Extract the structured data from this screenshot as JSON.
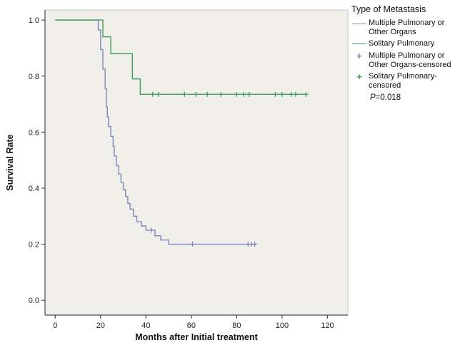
{
  "legend": {
    "title": "Type of Metastasis",
    "entries": [
      {
        "label": "Multiple Pulmonary or Other Organs",
        "color": "#7f87bf",
        "marker": "line"
      },
      {
        "label": "Solitary Pulmonary",
        "color": "#3fa05c",
        "marker": "line"
      },
      {
        "label": "Multiple Pulmonary or Other Organs-censored",
        "color": "#7f87bf",
        "marker": "plus"
      },
      {
        "label": "Solitary Pulmonary-censored",
        "color": "#3fa05c",
        "marker": "plus"
      }
    ],
    "p_italic": "P",
    "p_rest": "=0.018"
  },
  "chart_data": {
    "type": "line",
    "subtype": "kaplan-meier-step",
    "title": "Type of Metastasis",
    "xlabel": "Months after Initial treatment",
    "ylabel": "Survival Rate",
    "xlim": [
      -4.5,
      129
    ],
    "ylim": [
      -0.053,
      1.036
    ],
    "plot_bg": "#f0efe9",
    "plot_border": "#c9c8c2",
    "axis_color": "#4a4a4a",
    "tick_label_color": "#222222",
    "xticks": [
      {
        "value": 0,
        "label": "0"
      },
      {
        "value": 20,
        "label": "20"
      },
      {
        "value": 40,
        "label": "40"
      },
      {
        "value": 60,
        "label": "60"
      },
      {
        "value": 80,
        "label": "80"
      },
      {
        "value": 100,
        "label": "100"
      },
      {
        "value": 120,
        "label": "120"
      }
    ],
    "yticks": [
      {
        "value": 0.0,
        "label": "0.0"
      },
      {
        "value": 0.2,
        "label": "0.2"
      },
      {
        "value": 0.4,
        "label": "0.4"
      },
      {
        "value": 0.6,
        "label": "0.6"
      },
      {
        "value": 0.8,
        "label": "0.8"
      },
      {
        "value": 1.0,
        "label": "1.0"
      }
    ],
    "series": [
      {
        "name": "Multiple Pulmonary or Other Organs",
        "color": "#7f87bf",
        "points": [
          [
            0,
            1.0
          ],
          [
            19,
            1.0
          ],
          [
            19,
            0.965
          ],
          [
            20,
            0.965
          ],
          [
            20,
            0.895
          ],
          [
            21,
            0.895
          ],
          [
            21,
            0.825
          ],
          [
            22,
            0.825
          ],
          [
            22,
            0.755
          ],
          [
            22.5,
            0.755
          ],
          [
            22.5,
            0.69
          ],
          [
            23,
            0.69
          ],
          [
            23,
            0.655
          ],
          [
            23.5,
            0.655
          ],
          [
            23.5,
            0.62
          ],
          [
            24.5,
            0.62
          ],
          [
            24.5,
            0.585
          ],
          [
            25.5,
            0.585
          ],
          [
            25.5,
            0.55
          ],
          [
            26,
            0.55
          ],
          [
            26,
            0.515
          ],
          [
            27,
            0.515
          ],
          [
            27,
            0.48
          ],
          [
            28,
            0.48
          ],
          [
            28,
            0.45
          ],
          [
            29,
            0.45
          ],
          [
            29,
            0.42
          ],
          [
            30,
            0.42
          ],
          [
            30,
            0.395
          ],
          [
            31,
            0.395
          ],
          [
            31,
            0.37
          ],
          [
            32,
            0.37
          ],
          [
            32,
            0.345
          ],
          [
            33,
            0.345
          ],
          [
            33,
            0.325
          ],
          [
            34.5,
            0.325
          ],
          [
            34.5,
            0.3
          ],
          [
            36,
            0.3
          ],
          [
            36,
            0.28
          ],
          [
            38,
            0.28
          ],
          [
            38,
            0.265
          ],
          [
            40,
            0.265
          ],
          [
            40,
            0.25
          ],
          [
            44,
            0.25
          ],
          [
            44,
            0.23
          ],
          [
            46.5,
            0.23
          ],
          [
            46.5,
            0.215
          ],
          [
            50,
            0.215
          ],
          [
            50,
            0.2
          ],
          [
            88,
            0.2
          ]
        ],
        "censored": [
          [
            42.5,
            0.25
          ],
          [
            60.5,
            0.2
          ],
          [
            85,
            0.2
          ],
          [
            86.5,
            0.2
          ],
          [
            88,
            0.2
          ]
        ]
      },
      {
        "name": "Solitary Pulmonary",
        "color": "#3fa05c",
        "points": [
          [
            0,
            1.0
          ],
          [
            21,
            1.0
          ],
          [
            21,
            0.94
          ],
          [
            24.5,
            0.94
          ],
          [
            24.5,
            0.88
          ],
          [
            34,
            0.88
          ],
          [
            34,
            0.79
          ],
          [
            37.5,
            0.79
          ],
          [
            37.5,
            0.735
          ],
          [
            111,
            0.735
          ]
        ],
        "censored": [
          [
            43,
            0.735
          ],
          [
            45.5,
            0.735
          ],
          [
            57,
            0.735
          ],
          [
            62,
            0.735
          ],
          [
            67,
            0.735
          ],
          [
            73,
            0.735
          ],
          [
            80,
            0.735
          ],
          [
            83,
            0.735
          ],
          [
            85.5,
            0.735
          ],
          [
            97,
            0.735
          ],
          [
            100,
            0.735
          ],
          [
            104,
            0.735
          ],
          [
            106,
            0.735
          ],
          [
            110.5,
            0.735
          ]
        ]
      }
    ]
  }
}
